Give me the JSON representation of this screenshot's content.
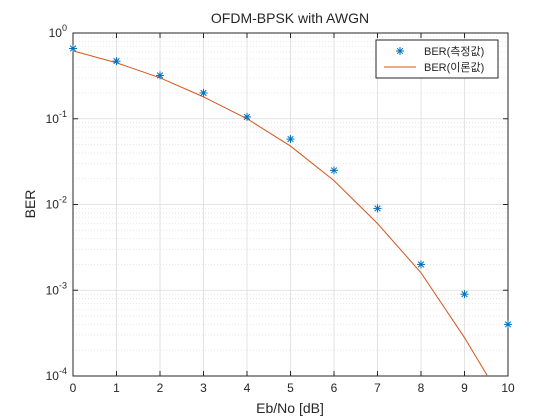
{
  "chart_data": {
    "type": "line",
    "title": "OFDM-BPSK with AWGN",
    "xlabel": "Eb/No [dB]",
    "ylabel": "BER",
    "xlim": [
      0,
      10
    ],
    "ylim": [
      0.0001,
      1
    ],
    "yscale": "log",
    "grid": true,
    "minor_grid": true,
    "legend_position": "top-right",
    "x_ticks": [
      0,
      1,
      2,
      3,
      4,
      5,
      6,
      7,
      8,
      9,
      10
    ],
    "x_tick_labels": [
      "0",
      "1",
      "2",
      "3",
      "4",
      "5",
      "6",
      "7",
      "8",
      "9",
      "10"
    ],
    "y_ticks": [
      {
        "value": 1,
        "base": "10",
        "exp": "0"
      },
      {
        "value": 0.1,
        "base": "10",
        "exp": "-1"
      },
      {
        "value": 0.01,
        "base": "10",
        "exp": "-2"
      },
      {
        "value": 0.001,
        "base": "10",
        "exp": "-3"
      },
      {
        "value": 0.0001,
        "base": "10",
        "exp": "-4"
      }
    ],
    "series": [
      {
        "name": "BER(측정값)",
        "style": "markers",
        "marker": "asterisk",
        "color": "#0072BD",
        "x": [
          0,
          1,
          2,
          3,
          4,
          5,
          6,
          7,
          8,
          9,
          10
        ],
        "y": [
          0.66,
          0.47,
          0.32,
          0.2,
          0.105,
          0.058,
          0.025,
          0.009,
          0.002,
          0.0009,
          0.0004
        ]
      },
      {
        "name": "BER(이론값)",
        "style": "line",
        "color": "#D95319",
        "x": [
          0,
          1,
          2,
          3,
          4,
          5,
          6,
          7,
          8,
          9,
          10
        ],
        "y": [
          0.62,
          0.45,
          0.3,
          0.18,
          0.1,
          0.048,
          0.019,
          0.006,
          0.0016,
          0.00028,
          4e-05
        ]
      }
    ]
  }
}
